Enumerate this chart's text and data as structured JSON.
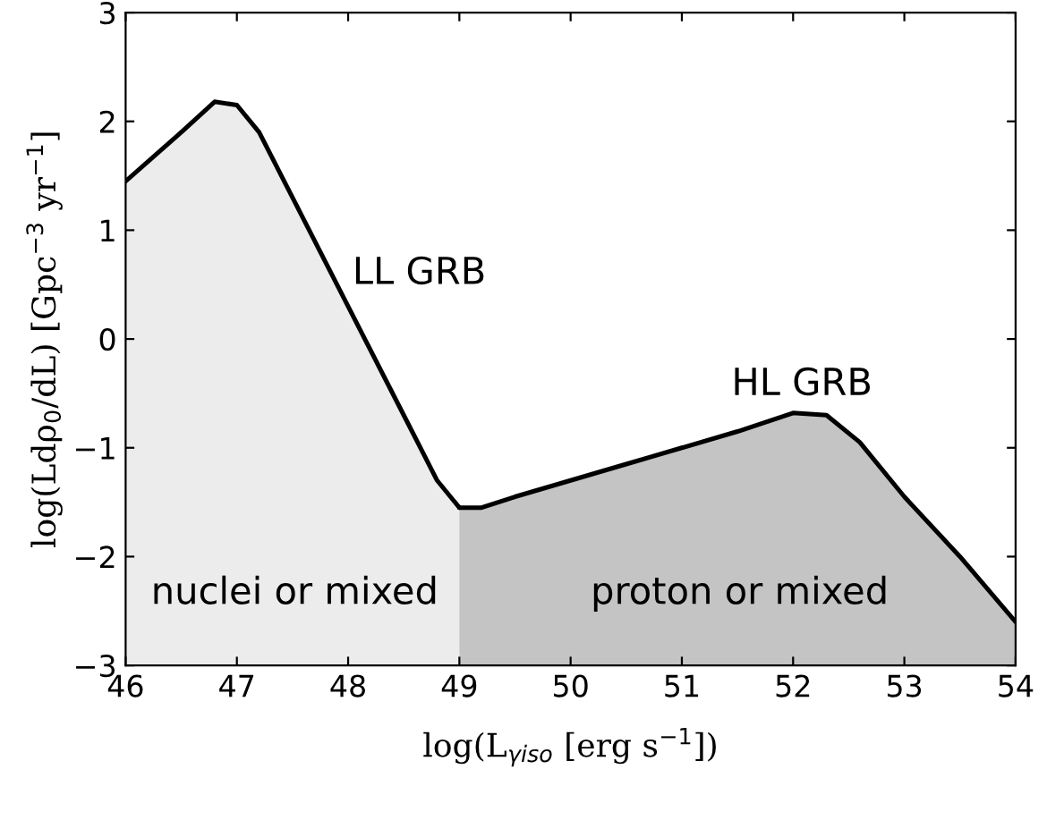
{
  "chart_data": {
    "type": "area",
    "xlabel": "log(L$_{γiso}$ [erg s$^{−1}$])",
    "ylabel": "log(Ldρ$_{0}$/dL) [Gpc$^{−3}$ yr$^{−1}$]",
    "xlim": [
      46,
      54
    ],
    "ylim": [
      -3,
      3
    ],
    "xticks": [
      46,
      47,
      48,
      49,
      50,
      51,
      52,
      53,
      54
    ],
    "yticks": [
      -3,
      -2,
      -1,
      0,
      1,
      2,
      3
    ],
    "grid": false,
    "legend": false,
    "series": [
      {
        "color": "#ececec",
        "x": [
          46,
          46.5,
          46.8,
          47.0,
          47.2,
          47.5,
          48,
          48.5,
          48.8,
          49
        ],
        "values": [
          1.45,
          1.9,
          2.18,
          2.15,
          1.9,
          1.3,
          0.3,
          -0.7,
          -1.3,
          -1.55
        ]
      },
      {
        "color": "#c4c4c4",
        "x": [
          49,
          49.2,
          49.5,
          50,
          50.5,
          51,
          51.5,
          52,
          52.3,
          52.6,
          53,
          53.5,
          54
        ],
        "values": [
          -1.55,
          -1.55,
          -1.45,
          -1.3,
          -1.15,
          -1.0,
          -0.85,
          -0.68,
          -0.7,
          -0.95,
          -1.45,
          -2.0,
          -2.6
        ]
      }
    ],
    "annotations": [
      "LL GRB",
      "HL GRB",
      "nuclei or mixed",
      "proton or mixed"
    ]
  }
}
